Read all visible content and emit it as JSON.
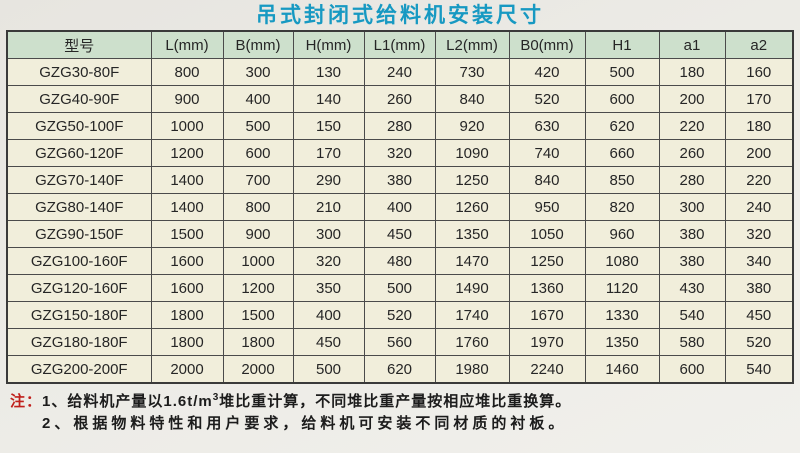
{
  "title": "吊式封闭式给料机安装尺寸",
  "table": {
    "headers": [
      "型号",
      "L(mm)",
      "B(mm)",
      "H(mm)",
      "L1(mm)",
      "L2(mm)",
      "B0(mm)",
      "H1",
      "a1",
      "a2"
    ],
    "rows": [
      [
        "GZG30-80F",
        "800",
        "300",
        "130",
        "240",
        "730",
        "420",
        "500",
        "180",
        "160"
      ],
      [
        "GZG40-90F",
        "900",
        "400",
        "140",
        "260",
        "840",
        "520",
        "600",
        "200",
        "170"
      ],
      [
        "GZG50-100F",
        "1000",
        "500",
        "150",
        "280",
        "920",
        "630",
        "620",
        "220",
        "180"
      ],
      [
        "GZG60-120F",
        "1200",
        "600",
        "170",
        "320",
        "1090",
        "740",
        "660",
        "260",
        "200"
      ],
      [
        "GZG70-140F",
        "1400",
        "700",
        "290",
        "380",
        "1250",
        "840",
        "850",
        "280",
        "220"
      ],
      [
        "GZG80-140F",
        "1400",
        "800",
        "210",
        "400",
        "1260",
        "950",
        "820",
        "300",
        "240"
      ],
      [
        "GZG90-150F",
        "1500",
        "900",
        "300",
        "450",
        "1350",
        "1050",
        "960",
        "380",
        "320"
      ],
      [
        "GZG100-160F",
        "1600",
        "1000",
        "320",
        "480",
        "1470",
        "1250",
        "1080",
        "380",
        "340"
      ],
      [
        "GZG120-160F",
        "1600",
        "1200",
        "350",
        "500",
        "1490",
        "1360",
        "1120",
        "430",
        "380"
      ],
      [
        "GZG150-180F",
        "1800",
        "1500",
        "400",
        "520",
        "1740",
        "1670",
        "1330",
        "540",
        "450"
      ],
      [
        "GZG180-180F",
        "1800",
        "1800",
        "450",
        "560",
        "1760",
        "1970",
        "1350",
        "580",
        "520"
      ],
      [
        "GZG200-200F",
        "2000",
        "2000",
        "500",
        "620",
        "1980",
        "2240",
        "1460",
        "600",
        "540"
      ]
    ]
  },
  "notes": {
    "label": "注：",
    "note1_prefix": "1、给料机产量以1.6t/m",
    "note1_sup": "3",
    "note1_suffix": "堆比重计算，不同堆比重产量按相应堆比重换算。",
    "note2": "2、根据物料特性和用户要求，给料机可安装不同材质的衬板。"
  },
  "colors": {
    "title_text": "#1799c2",
    "header_bg": "#cde0cc",
    "row_bg": "#f1eedb",
    "border": "#4b4b4b",
    "note_label": "#c0201c",
    "page_bg": "#ecebe6"
  }
}
